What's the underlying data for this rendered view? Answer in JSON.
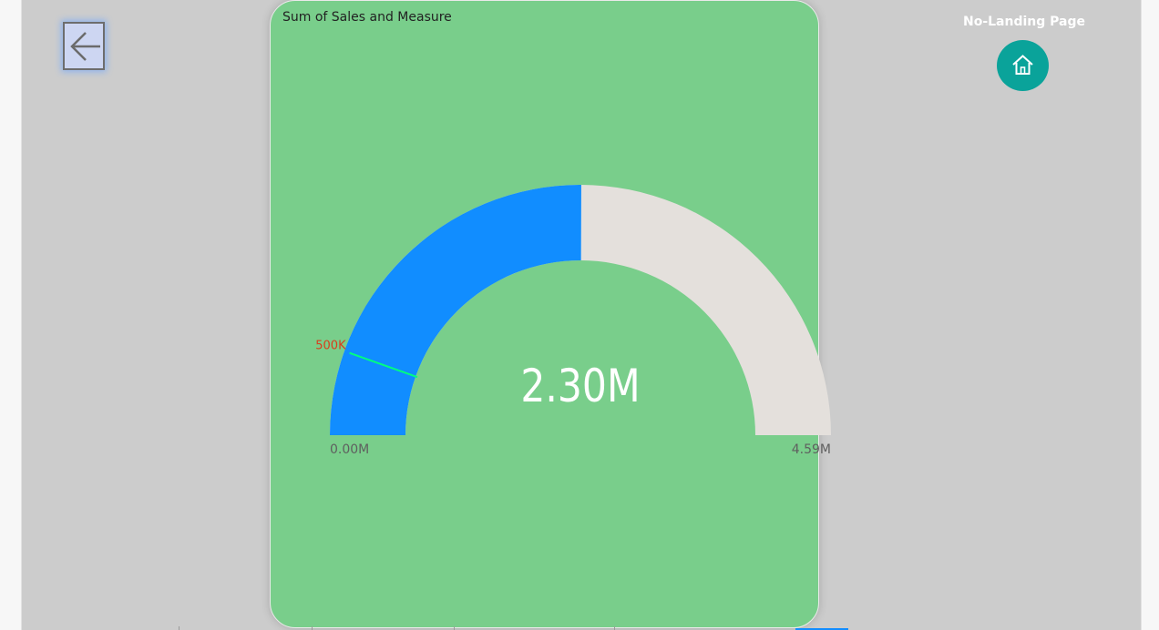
{
  "navigation": {
    "back_icon": "arrow-left-icon",
    "home_label": "No-Landing Page",
    "home_icon": "home-icon"
  },
  "colors": {
    "canvas": "#cccccc",
    "card": "#79ce8b",
    "gauge_fill": "#118dff",
    "gauge_track": "#e4e0dc",
    "target_line": "#00ff80",
    "target_label": "#d93d1c",
    "home_button": "#0aa39a",
    "back_button": "#cdd6f2"
  },
  "chart_data": {
    "type": "gauge",
    "title": "Sum of Sales and Measure",
    "min": 0,
    "max": 4.59,
    "value": 2.3,
    "target": 0.5,
    "unit": "M",
    "value_label": "2.30M",
    "min_label": "0.00M",
    "max_label": "4.59M",
    "target_label": "500K"
  }
}
